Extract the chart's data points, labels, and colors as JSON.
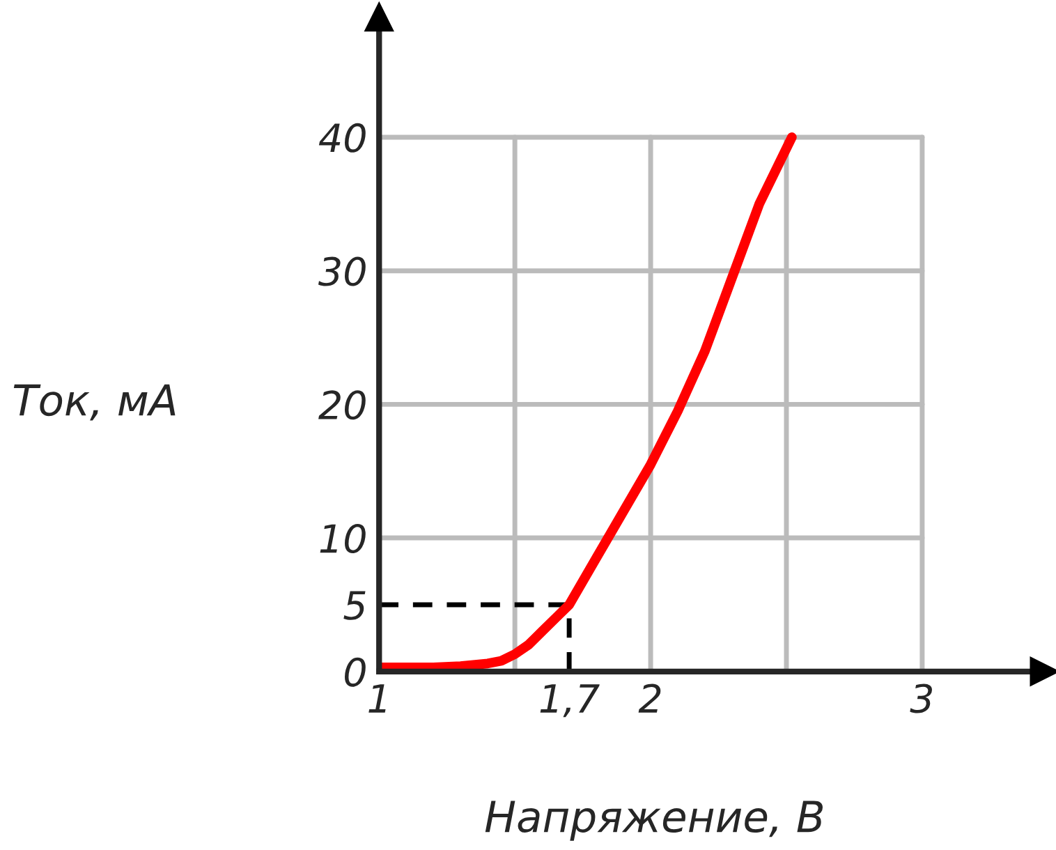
{
  "chart_data": {
    "type": "line",
    "xlabel": "Напряжение, В",
    "ylabel": "Ток, мА",
    "x": [
      1.0,
      1.2,
      1.3,
      1.4,
      1.45,
      1.5,
      1.55,
      1.6,
      1.65,
      1.7,
      1.8,
      1.9,
      2.0,
      2.1,
      2.2,
      2.3,
      2.4,
      2.52
    ],
    "series": [
      {
        "color": "#ff0000",
        "values": [
          0.3,
          0.3,
          0.4,
          0.6,
          0.8,
          1.3,
          2,
          3,
          4,
          5,
          8.5,
          12,
          15.5,
          19.5,
          24,
          29.5,
          35,
          40
        ]
      }
    ],
    "xlim": [
      1,
      3.45
    ],
    "ylim": [
      0,
      49
    ],
    "xticks": [
      1,
      {
        "value": 1.5,
        "label": null
      },
      {
        "value": 1.7,
        "label": "1,7"
      },
      2,
      {
        "value": 2.5,
        "label": null
      },
      3
    ],
    "yticks": [
      0,
      5,
      10,
      20,
      30,
      40
    ],
    "grid": true,
    "marker": "none",
    "line_style": "solid",
    "ref_lines": [
      {
        "axis": "x",
        "value": 1.7,
        "color": "#000000",
        "line_style": "dashed"
      },
      {
        "axis": "y",
        "value": 5,
        "color": "#000000",
        "line_style": "dashed"
      }
    ]
  }
}
